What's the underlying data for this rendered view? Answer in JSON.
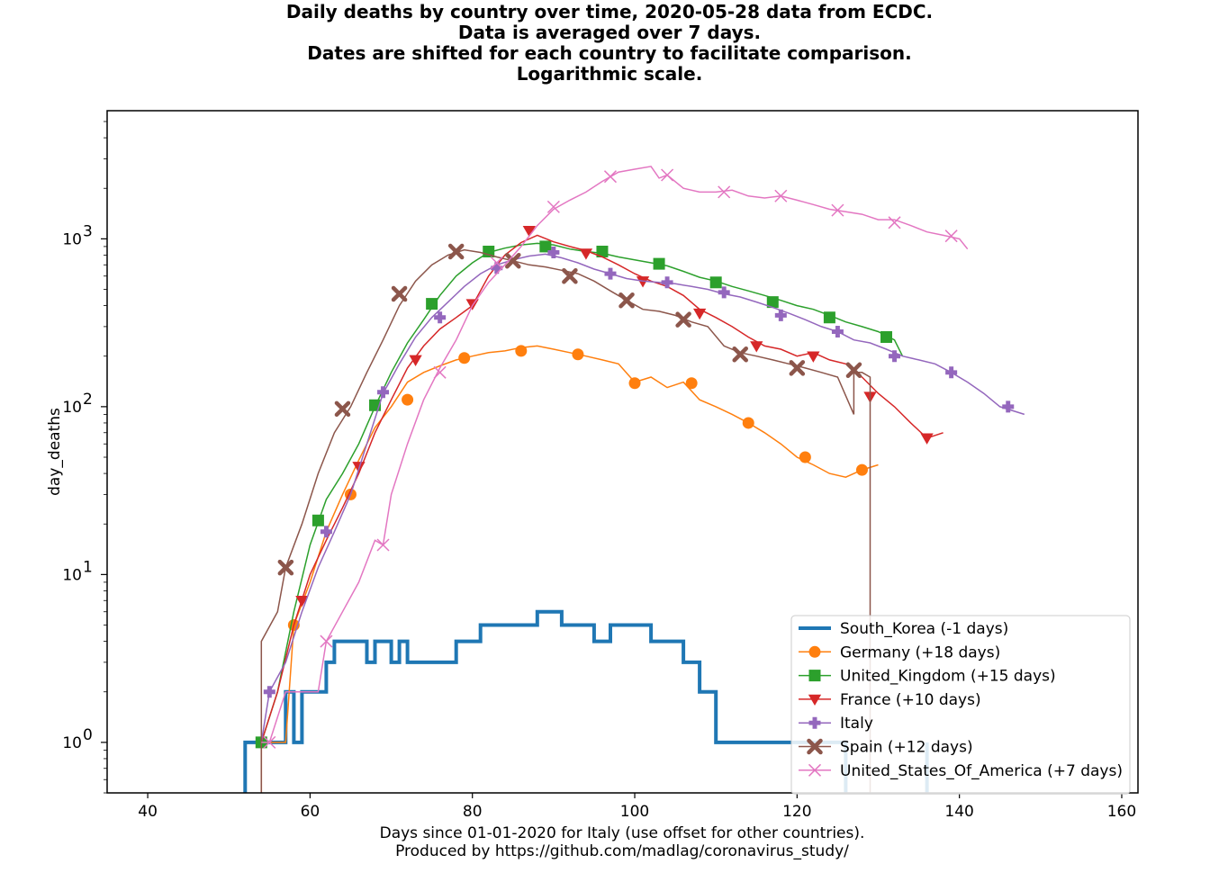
{
  "title": {
    "lines": [
      "Daily deaths by country over time, 2020-05-28 data from ECDC.",
      "Data is averaged over 7 days.",
      "Dates are shifted for each country to facilitate comparison.",
      "Logarithmic scale."
    ]
  },
  "chart_data": {
    "type": "line",
    "xlabel": "Days since 01-01-2020 for Italy (use offset for other countries).",
    "xlabel2": "Produced by https://github.com/madlag/coronavirus_study/",
    "ylabel": "day_deaths",
    "xlim": [
      35,
      162
    ],
    "ylim": [
      0.5,
      5800
    ],
    "yscale": "log",
    "xticks": [
      40,
      60,
      80,
      100,
      120,
      140,
      160
    ],
    "xtick_labels": [
      "40",
      "60",
      "80",
      "100",
      "120",
      "140",
      "160"
    ],
    "yticks": [
      1,
      10,
      100,
      1000
    ],
    "ytick_labels": [
      "10",
      "10",
      "10",
      "10"
    ],
    "ytick_exponents": [
      "0",
      "1",
      "2",
      "3"
    ],
    "grid": false,
    "legend_position": "lower-right",
    "series": [
      {
        "name": "South_Korea (-1 days)",
        "color": "#1f77b4",
        "marker": "none",
        "width": 4,
        "x": [
          52,
          52,
          54,
          56,
          57,
          58,
          59,
          61,
          62,
          63,
          66,
          67,
          68,
          69,
          70,
          71,
          72,
          73,
          75,
          77,
          78,
          80,
          81,
          85,
          86,
          88,
          89,
          91,
          92,
          95,
          96,
          97,
          98,
          102,
          103,
          106,
          107,
          108,
          109,
          110,
          126,
          126,
          128,
          136,
          136
        ],
        "y": [
          0.3,
          1,
          1,
          1,
          2,
          1,
          2,
          2,
          3,
          4,
          4,
          3,
          4,
          4,
          3,
          4,
          3,
          3,
          3,
          3,
          4,
          4,
          5,
          5,
          5,
          6,
          6,
          5,
          5,
          4,
          4,
          5,
          5,
          4,
          4,
          3,
          3,
          2,
          2,
          1,
          1,
          0.3,
          0.3,
          1,
          0.3
        ]
      },
      {
        "name": "Germany (+18 days)",
        "color": "#ff7f0e",
        "marker": "circle",
        "x": [
          54,
          54,
          57,
          58,
          60,
          62,
          64,
          66,
          68,
          70,
          72,
          74,
          76,
          78,
          80,
          82,
          84,
          86,
          88,
          90,
          92,
          94,
          96,
          98,
          100,
          102,
          104,
          106,
          108,
          110,
          112,
          114,
          116,
          118,
          120,
          122,
          124,
          126,
          128,
          130
        ],
        "y": [
          0.3,
          1,
          1,
          5,
          9,
          18,
          30,
          48,
          75,
          100,
          140,
          160,
          175,
          190,
          200,
          210,
          215,
          225,
          230,
          220,
          210,
          200,
          190,
          180,
          140,
          150,
          130,
          140,
          110,
          100,
          90,
          80,
          70,
          60,
          50,
          45,
          40,
          38,
          42,
          45
        ],
        "marker_x": [
          58,
          65,
          72,
          79,
          86,
          93,
          100,
          107,
          114,
          121,
          128
        ],
        "marker_y": [
          5,
          30,
          110,
          195,
          215,
          205,
          138,
          138,
          80,
          50,
          42
        ]
      },
      {
        "name": "United_Kingdom (+15 days)",
        "color": "#2ca02c",
        "marker": "square",
        "x": [
          54,
          56,
          58,
          60,
          62,
          64,
          66,
          68,
          70,
          72,
          74,
          76,
          78,
          80,
          82,
          84,
          86,
          88,
          90,
          92,
          94,
          96,
          98,
          100,
          102,
          104,
          106,
          108,
          110,
          112,
          114,
          116,
          118,
          120,
          122,
          124,
          126,
          128,
          130,
          132,
          133
        ],
        "y": [
          1,
          2,
          6,
          15,
          28,
          40,
          60,
          100,
          160,
          240,
          330,
          460,
          600,
          720,
          830,
          880,
          920,
          940,
          920,
          870,
          840,
          820,
          780,
          750,
          720,
          690,
          640,
          590,
          560,
          520,
          490,
          460,
          430,
          400,
          380,
          350,
          320,
          300,
          280,
          250,
          200
        ],
        "marker_x": [
          54,
          61,
          68,
          75,
          82,
          89,
          96,
          103,
          110,
          117,
          124,
          131
        ],
        "marker_y": [
          1,
          21,
          102,
          410,
          840,
          900,
          840,
          710,
          550,
          420,
          340,
          260
        ]
      },
      {
        "name": "France (+10 days)",
        "color": "#d62728",
        "marker": "triangle-down",
        "x": [
          54,
          56,
          58,
          60,
          62,
          64,
          66,
          68,
          70,
          72,
          74,
          76,
          78,
          80,
          82,
          84,
          86,
          88,
          90,
          92,
          94,
          96,
          98,
          100,
          102,
          104,
          106,
          108,
          110,
          112,
          114,
          116,
          118,
          120,
          122,
          124,
          126,
          128,
          130,
          132,
          134,
          136,
          138
        ],
        "y": [
          1,
          2,
          5,
          10,
          16,
          25,
          40,
          70,
          110,
          170,
          230,
          290,
          340,
          400,
          600,
          800,
          950,
          1050,
          960,
          900,
          850,
          780,
          700,
          620,
          560,
          520,
          460,
          380,
          340,
          300,
          260,
          230,
          220,
          200,
          210,
          190,
          180,
          150,
          120,
          100,
          80,
          65,
          70
        ],
        "marker_x": [
          59,
          66,
          73,
          80,
          87,
          94,
          101,
          108,
          115,
          122,
          129,
          136
        ],
        "marker_y": [
          7,
          44,
          190,
          410,
          1120,
          820,
          560,
          360,
          230,
          200,
          115,
          65
        ]
      },
      {
        "name": "Italy",
        "color": "#9467bd",
        "marker": "plus",
        "x": [
          54,
          55,
          57,
          59,
          61,
          63,
          65,
          67,
          69,
          71,
          73,
          75,
          77,
          79,
          81,
          83,
          85,
          87,
          89,
          91,
          93,
          95,
          97,
          99,
          101,
          103,
          105,
          107,
          109,
          111,
          113,
          115,
          117,
          119,
          121,
          123,
          125,
          127,
          129,
          131,
          133,
          135,
          137,
          139,
          141,
          143,
          145,
          148
        ],
        "y": [
          1,
          2,
          3,
          6,
          11,
          18,
          30,
          60,
          120,
          180,
          260,
          340,
          420,
          520,
          620,
          700,
          750,
          790,
          810,
          770,
          720,
          660,
          620,
          580,
          560,
          550,
          540,
          520,
          500,
          470,
          450,
          420,
          390,
          360,
          330,
          300,
          280,
          250,
          240,
          220,
          200,
          190,
          180,
          160,
          140,
          120,
          100,
          90
        ],
        "marker_x": [
          55,
          62,
          69,
          76,
          83,
          90,
          97,
          104,
          111,
          118,
          125,
          132,
          139,
          146
        ],
        "marker_y": [
          2,
          18,
          122,
          340,
          670,
          830,
          620,
          550,
          480,
          350,
          280,
          200,
          160,
          100
        ]
      },
      {
        "name": "Spain (+12 days)",
        "color": "#8c564b",
        "marker": "x-filled",
        "x": [
          54,
          54,
          56,
          57,
          59,
          61,
          63,
          65,
          67,
          69,
          71,
          73,
          75,
          77,
          79,
          81,
          83,
          85,
          87,
          89,
          91,
          93,
          95,
          97,
          99,
          101,
          103,
          105,
          107,
          109,
          111,
          113,
          115,
          117,
          119,
          121,
          123,
          125,
          127,
          127,
          128,
          129,
          129
        ],
        "y": [
          0.3,
          4,
          6,
          11,
          20,
          40,
          70,
          100,
          160,
          250,
          400,
          560,
          700,
          800,
          860,
          830,
          780,
          740,
          700,
          680,
          650,
          620,
          560,
          490,
          430,
          380,
          370,
          350,
          320,
          300,
          230,
          210,
          200,
          190,
          180,
          170,
          160,
          150,
          90,
          160,
          160,
          150,
          0.3
        ],
        "marker_x": [
          57,
          64,
          71,
          78,
          85,
          92,
          99,
          106,
          113,
          120,
          127
        ],
        "marker_y": [
          11,
          97,
          470,
          840,
          740,
          600,
          430,
          330,
          205,
          170,
          165
        ]
      },
      {
        "name": "United_States_Of_America (+7 days)",
        "color": "#e377c2",
        "marker": "x",
        "x": [
          54,
          55,
          57,
          59,
          61,
          62,
          64,
          66,
          68,
          69,
          70,
          72,
          74,
          76,
          78,
          80,
          82,
          84,
          86,
          88,
          90,
          92,
          94,
          96,
          98,
          100,
          102,
          103,
          104,
          106,
          108,
          110,
          112,
          114,
          116,
          118,
          120,
          122,
          124,
          126,
          128,
          130,
          132,
          134,
          136,
          138,
          140,
          141
        ],
        "y": [
          1,
          1,
          2,
          2,
          2,
          4,
          6,
          9,
          16,
          15,
          30,
          60,
          110,
          170,
          250,
          400,
          550,
          700,
          900,
          1200,
          1500,
          1700,
          1900,
          2200,
          2500,
          2600,
          2700,
          2300,
          2400,
          2000,
          1900,
          1900,
          1950,
          1800,
          1750,
          1800,
          1700,
          1600,
          1500,
          1450,
          1400,
          1300,
          1300,
          1200,
          1100,
          1050,
          1000,
          870
        ],
        "marker_x": [
          55,
          62,
          69,
          76,
          83,
          90,
          97,
          104,
          111,
          118,
          125,
          132,
          139
        ],
        "marker_y": [
          1,
          4,
          15,
          160,
          720,
          1550,
          2350,
          2400,
          1900,
          1800,
          1480,
          1250,
          1040
        ]
      }
    ]
  }
}
